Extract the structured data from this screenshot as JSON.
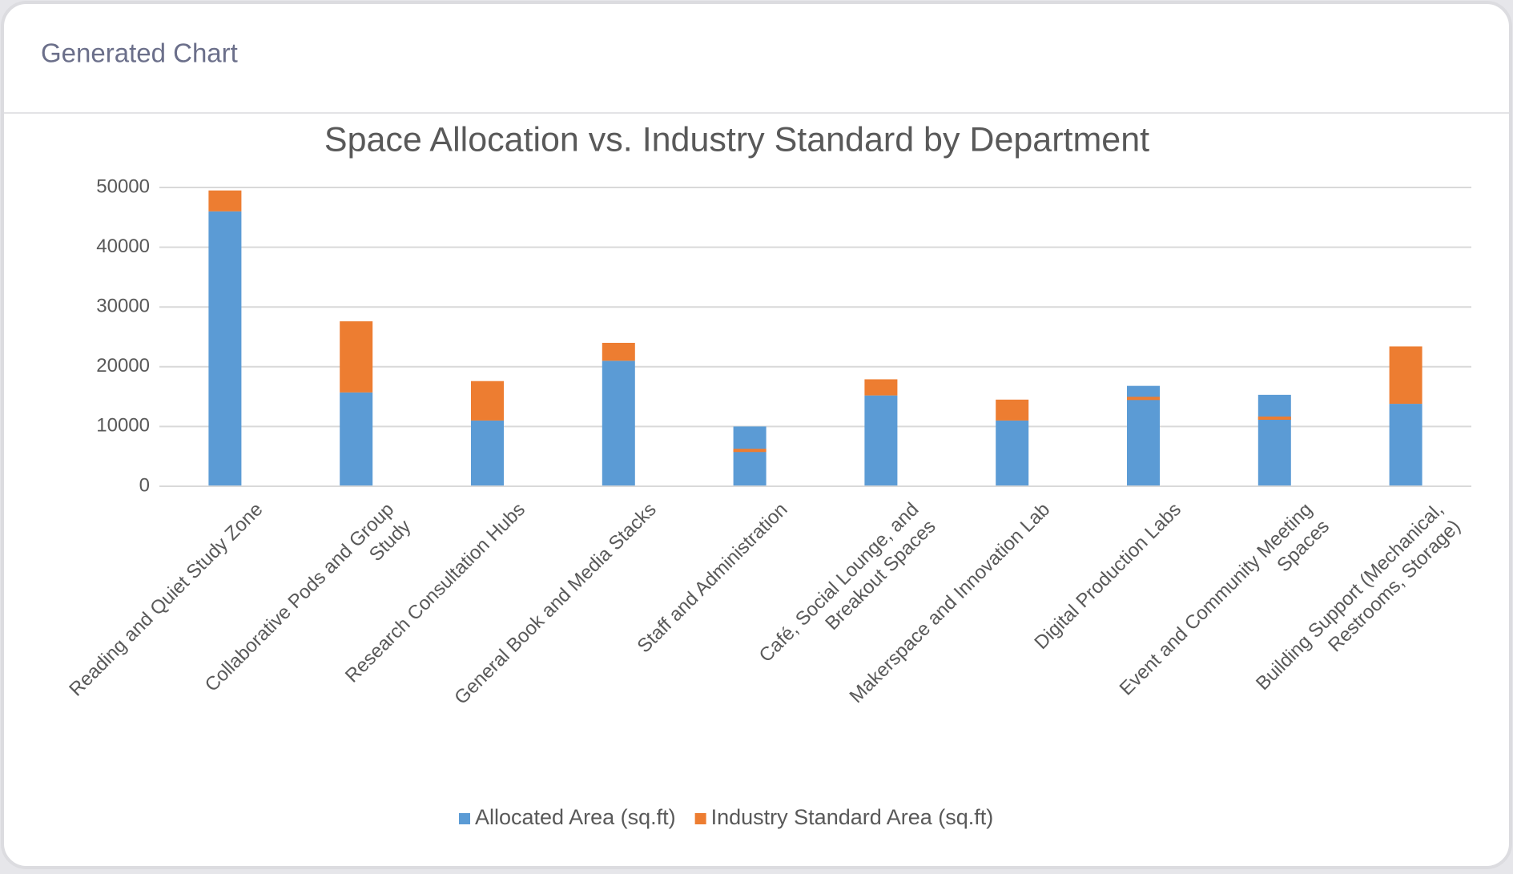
{
  "header": {
    "title": "Generated Chart"
  },
  "chart_data": {
    "type": "bar",
    "title": "Space Allocation vs. Industry Standard by Department",
    "categories": [
      "Reading and Quiet Study Zone",
      "Collaborative Pods and Group Study",
      "Research Consultation Hubs",
      "General Book and Media Stacks",
      "Staff and Administration",
      "Café, Social Lounge, and Breakout Spaces",
      "Makerspace and Innovation Lab",
      "Digital Production Labs",
      "Event and Community Meeting Spaces",
      "Building Support (Mechanical, Restrooms, Storage)"
    ],
    "series": [
      {
        "name": "Allocated Area (sq.ft)",
        "color": "#5b9bd5",
        "values": [
          46000,
          15700,
          11000,
          21000,
          10000,
          15200,
          11000,
          16800,
          15300,
          13800
        ]
      },
      {
        "name": "Industry Standard Area (sq.ft)",
        "color": "#ed7d31",
        "values": [
          49500,
          27600,
          17600,
          24000,
          6000,
          17900,
          14500,
          14700,
          11400,
          23400
        ]
      }
    ],
    "ylim": [
      0,
      50000
    ],
    "yticks": [
      0,
      10000,
      20000,
      30000,
      40000,
      50000
    ],
    "grid": true,
    "legend": "bottom"
  }
}
